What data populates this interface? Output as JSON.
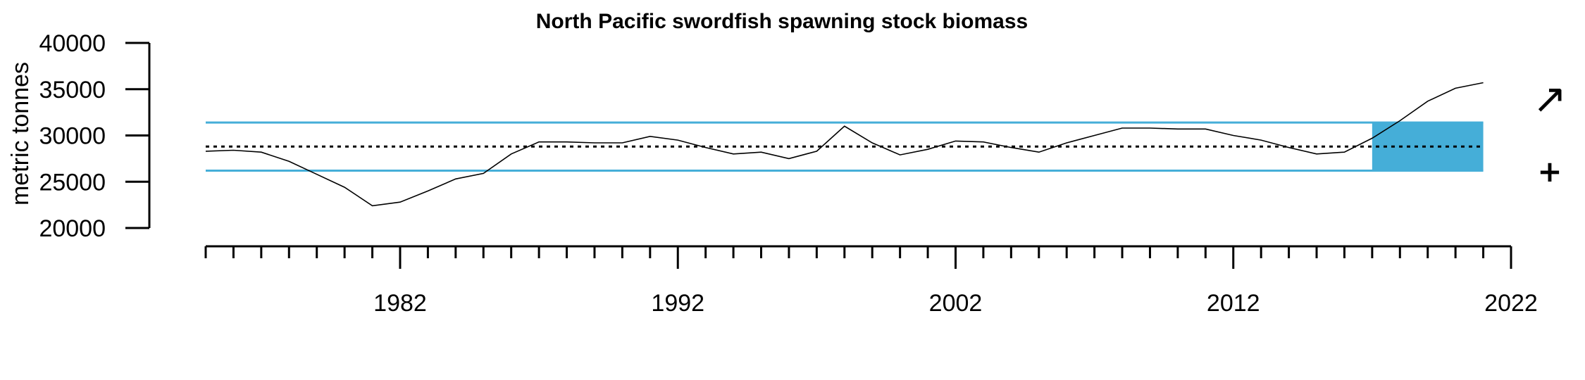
{
  "chart_data": {
    "type": "line",
    "title": "North Pacific swordfish spawning stock biomass",
    "xlabel": "",
    "ylabel": "metric tonnes",
    "xlim": [
      1975,
      2022
    ],
    "ylim": [
      20000,
      40000
    ],
    "x_ticks": [
      1982,
      1992,
      2002,
      2012,
      2022
    ],
    "y_ticks": [
      20000,
      25000,
      30000,
      35000,
      40000
    ],
    "x_minor_step": 1,
    "series": [
      {
        "color": "#000000",
        "x": [
          1975,
          1976,
          1977,
          1978,
          1979,
          1980,
          1981,
          1982,
          1983,
          1984,
          1985,
          1986,
          1987,
          1988,
          1989,
          1990,
          1991,
          1992,
          1993,
          1994,
          1995,
          1996,
          1997,
          1998,
          1999,
          2000,
          2001,
          2002,
          2003,
          2004,
          2005,
          2006,
          2007,
          2008,
          2009,
          2010,
          2011,
          2012,
          2013,
          2014,
          2015,
          2016,
          2017,
          2018,
          2019,
          2020,
          2021
        ],
        "values": [
          28300,
          28400,
          28200,
          27200,
          25800,
          24400,
          22400,
          22800,
          24000,
          25300,
          25900,
          28000,
          29300,
          29300,
          29200,
          29200,
          29900,
          29500,
          28700,
          28000,
          28200,
          27500,
          28300,
          31000,
          29200,
          27900,
          28500,
          29400,
          29300,
          28700,
          28200,
          29200,
          30000,
          30800,
          30800,
          30700,
          30700,
          30000,
          29500,
          28700,
          28000,
          28200,
          29700,
          31600,
          33700,
          35100,
          35700
        ]
      }
    ],
    "reference_lines": {
      "mean": 28800,
      "upper": 31400,
      "lower": 26200,
      "mean_color": "#000000",
      "band_color": "#45AED8"
    },
    "highlight_period": [
      2017,
      2021
    ],
    "trend_symbol": "↗",
    "mean_symbol": "+",
    "grid": false,
    "legend": "none"
  }
}
